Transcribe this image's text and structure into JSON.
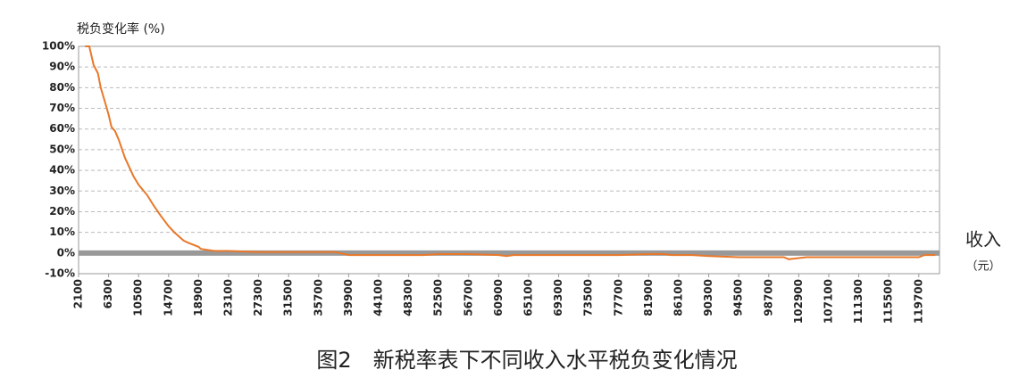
{
  "chart_data": {
    "type": "line",
    "y_axis_title": "税负变化率 (%)",
    "x_axis_title": "收入",
    "x_axis_unit": "（元）",
    "caption": "图2　新税率表下不同收入水平税负变化情况",
    "x": [
      3000,
      3600,
      4200,
      4800,
      5200,
      5800,
      6300,
      6700,
      7200,
      7700,
      8600,
      9800,
      10500,
      11700,
      12600,
      13600,
      14700,
      15500,
      16800,
      17400,
      18900,
      19200,
      21100,
      23100,
      27300,
      31500,
      35700,
      38000,
      39900,
      44100,
      48300,
      50400,
      52500,
      56700,
      60900,
      62000,
      63000,
      65100,
      69300,
      73500,
      77700,
      81900,
      84000,
      85100,
      88000,
      90300,
      94500,
      96000,
      98700,
      100800,
      101500,
      104000,
      107100,
      111300,
      115500,
      119700,
      120500,
      122000
    ],
    "series": [
      {
        "name": "税负变化率",
        "color": "#e8782a",
        "values": [
          100,
          100,
          91,
          87,
          80,
          73,
          67,
          61,
          59,
          55,
          46,
          37,
          33,
          28,
          23,
          18,
          13,
          10,
          6,
          5,
          3,
          2,
          1,
          1,
          0.5,
          0.5,
          0.5,
          0.5,
          -1,
          -1,
          -1,
          -1,
          -0.5,
          -0.5,
          -1,
          -1.5,
          -1,
          -1,
          -1,
          -1,
          -1,
          -0.5,
          -0.5,
          -1,
          -1,
          -1.5,
          -2,
          -2,
          -2,
          -2,
          -3,
          -2,
          -2,
          -2,
          -2,
          -2,
          -1,
          -1
        ]
      }
    ],
    "xlim": [
      2100,
      122600
    ],
    "xticks": [
      2100,
      6300,
      10500,
      14700,
      18900,
      23100,
      27300,
      31500,
      35700,
      39900,
      44100,
      48300,
      52500,
      56700,
      60900,
      65100,
      69300,
      73500,
      77700,
      81900,
      86100,
      90300,
      94500,
      98700,
      102900,
      107100,
      111300,
      115500,
      119700
    ],
    "ylim": [
      -10,
      100
    ],
    "yticks": [
      {
        "value": -10,
        "label": "-10%"
      },
      {
        "value": 0,
        "label": "0%"
      },
      {
        "value": 10,
        "label": "10%"
      },
      {
        "value": 20,
        "label": "20%"
      },
      {
        "value": 30,
        "label": "30%"
      },
      {
        "value": 40,
        "label": "40%"
      },
      {
        "value": 50,
        "label": "50%"
      },
      {
        "value": 60,
        "label": "60%"
      },
      {
        "value": 70,
        "label": "70%"
      },
      {
        "value": 80,
        "label": "80%"
      },
      {
        "value": 90,
        "label": "90%"
      },
      {
        "value": 100,
        "label": "100%"
      }
    ],
    "grid": true,
    "grid_color": "#bbbbbb",
    "zero_line_color": "#999999"
  }
}
